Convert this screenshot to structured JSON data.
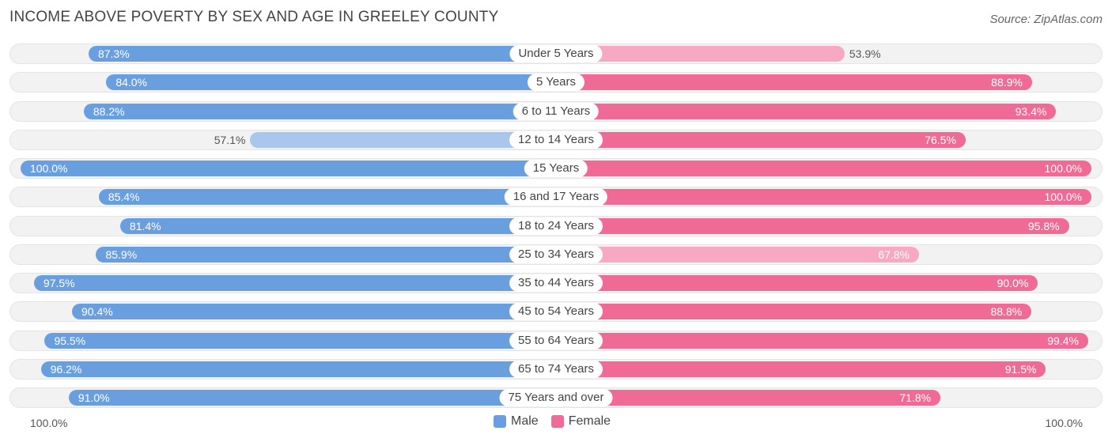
{
  "title": "INCOME ABOVE POVERTY BY SEX AND AGE IN GREELEY COUNTY",
  "source": "Source: ZipAtlas.com",
  "legend": {
    "male": "Male",
    "female": "Female"
  },
  "axis": {
    "left": "100.0%",
    "right": "100.0%"
  },
  "colors": {
    "male": "#6a9fdf",
    "male_light": "#a9c7ec",
    "female": "#f06a96",
    "female_light": "#f7a8c2"
  },
  "chart_data": {
    "type": "bar",
    "orientation": "horizontal-diverging",
    "title": "INCOME ABOVE POVERTY BY SEX AND AGE IN GREELEY COUNTY",
    "categories": [
      "Under 5 Years",
      "5 Years",
      "6 to 11 Years",
      "12 to 14 Years",
      "15 Years",
      "16 and 17 Years",
      "18 to 24 Years",
      "25 to 34 Years",
      "35 to 44 Years",
      "45 to 54 Years",
      "55 to 64 Years",
      "65 to 74 Years",
      "75 Years and over"
    ],
    "series": [
      {
        "name": "Male",
        "values": [
          87.3,
          84.0,
          88.2,
          57.1,
          100.0,
          85.4,
          81.4,
          85.9,
          97.5,
          90.4,
          95.5,
          96.2,
          91.0
        ],
        "labels": [
          "87.3%",
          "84.0%",
          "88.2%",
          "57.1%",
          "100.0%",
          "85.4%",
          "81.4%",
          "85.9%",
          "97.5%",
          "90.4%",
          "95.5%",
          "96.2%",
          "91.0%"
        ]
      },
      {
        "name": "Female",
        "values": [
          53.9,
          88.9,
          93.4,
          76.5,
          100.0,
          100.0,
          95.8,
          67.8,
          90.0,
          88.8,
          99.4,
          91.5,
          71.8
        ],
        "labels": [
          "53.9%",
          "88.9%",
          "93.4%",
          "76.5%",
          "100.0%",
          "100.0%",
          "95.8%",
          "67.8%",
          "90.0%",
          "88.8%",
          "99.4%",
          "91.5%",
          "71.8%"
        ]
      }
    ],
    "xlim": [
      0,
      100
    ],
    "unit": "%"
  }
}
